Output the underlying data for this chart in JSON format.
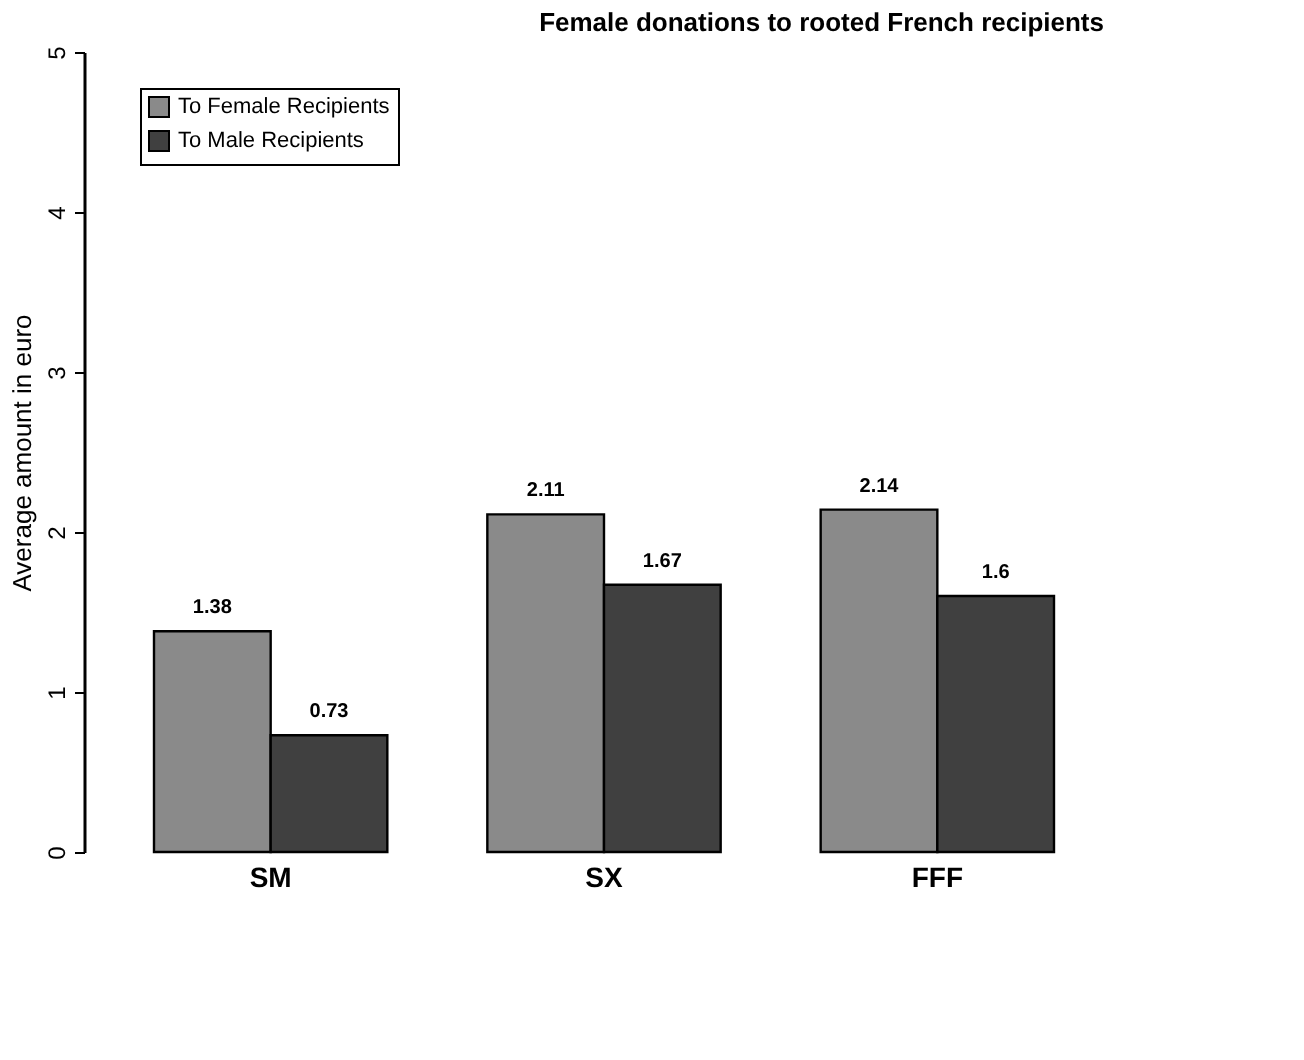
{
  "chart_data": {
    "type": "bar",
    "title": "Female donations to rooted French recipients",
    "ylabel": "Average amount in euro",
    "categories": [
      "SM",
      "SX",
      "FFF"
    ],
    "series": [
      {
        "name": "To Female Recipients",
        "color": "#8a8a8a",
        "values": [
          1.38,
          2.11,
          2.14
        ]
      },
      {
        "name": "To Male Recipients",
        "color": "#404040",
        "values": [
          0.73,
          1.67,
          1.6
        ]
      }
    ],
    "ylim": [
      0,
      5
    ],
    "yticks": [
      0,
      1,
      2,
      3,
      4,
      5
    ],
    "grid": false,
    "legend": "top left",
    "data_labels": true
  }
}
